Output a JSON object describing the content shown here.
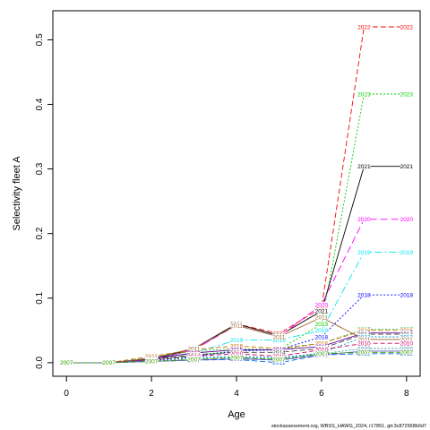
{
  "chart_data": {
    "type": "line",
    "title": "",
    "xlabel": "Age",
    "ylabel": "Selectivity fleet A",
    "xlim": [
      -0.32,
      8.32
    ],
    "ylim": [
      -0.021,
      0.545
    ],
    "x": [
      0,
      1,
      2,
      3,
      4,
      5,
      6,
      7,
      8
    ],
    "xticks": [
      0,
      2,
      4,
      6,
      8
    ],
    "yticks": [
      0.0,
      0.1,
      0.2,
      0.3,
      0.4,
      0.5
    ],
    "ytick_labels": [
      "0.0",
      "0.1",
      "0.2",
      "0.3",
      "0.4",
      "0.5"
    ],
    "grid": false,
    "legend": "none",
    "series": [
      {
        "name": "2022",
        "color": "#ff0000",
        "dash": "6,3",
        "values": [
          0.0,
          0.0,
          0.005,
          0.02,
          0.06,
          0.045,
          0.085,
          0.52,
          0.52
        ]
      },
      {
        "name": "2023",
        "color": "#00cc00",
        "dash": "2,2",
        "values": [
          0.0,
          0.0,
          0.004,
          0.012,
          0.018,
          0.02,
          0.06,
          0.416,
          0.416
        ]
      },
      {
        "name": "2021",
        "color": "#000000",
        "dash": "",
        "values": [
          0.0,
          0.0,
          0.005,
          0.022,
          0.06,
          0.042,
          0.08,
          0.304,
          0.304
        ]
      },
      {
        "name": "2020",
        "color": "#ff00ff",
        "dash": "8,4",
        "values": [
          0.0,
          0.0,
          0.004,
          0.02,
          0.058,
          0.04,
          0.09,
          0.222,
          0.222
        ]
      },
      {
        "name": "2019",
        "color": "#00e5ee",
        "dash": "8,3,2,3",
        "values": [
          0.0,
          0.0,
          0.005,
          0.015,
          0.035,
          0.035,
          0.05,
          0.171,
          0.171
        ]
      },
      {
        "name": "2018",
        "color": "#0000ff",
        "dash": "2,2",
        "values": [
          0.0,
          0.0,
          0.003,
          0.01,
          0.018,
          0.02,
          0.04,
          0.105,
          0.105
        ]
      },
      {
        "name": "2017",
        "color": "#33cc33",
        "dash": "2,2",
        "values": [
          0.0,
          0.0,
          0.008,
          0.018,
          0.022,
          0.02,
          0.03,
          0.052,
          0.052
        ]
      },
      {
        "name": "2016",
        "color": "#cc6600",
        "dash": "5,3",
        "values": [
          0.0,
          0.0,
          0.01,
          0.02,
          0.026,
          0.022,
          0.03,
          0.05,
          0.05
        ]
      },
      {
        "name": "2015",
        "color": "#660099",
        "dash": "",
        "values": [
          0.0,
          0.0,
          0.006,
          0.015,
          0.02,
          0.02,
          0.025,
          0.046,
          0.046
        ]
      },
      {
        "name": "2014",
        "color": "#444444",
        "dash": "6,3",
        "values": [
          0.0,
          0.0,
          0.005,
          0.012,
          0.016,
          0.016,
          0.022,
          0.044,
          0.044
        ]
      },
      {
        "name": "2013",
        "color": "#0099cc",
        "dash": "2,2",
        "values": [
          0.0,
          0.0,
          0.004,
          0.008,
          0.01,
          0.008,
          0.015,
          0.04,
          0.04
        ]
      },
      {
        "name": "2012",
        "color": "#0066ff",
        "dash": "6,3",
        "values": [
          0.0,
          0.0,
          0.002,
          0.004,
          0.005,
          0.0,
          0.012,
          0.014,
          0.014
        ]
      },
      {
        "name": "2011",
        "color": "#996633",
        "dash": "",
        "values": [
          0.0,
          0.0,
          0.007,
          0.022,
          0.058,
          0.04,
          0.07,
          0.036,
          0.036
        ]
      },
      {
        "name": "2010",
        "color": "#cc0066",
        "dash": "5,3",
        "values": [
          0.0,
          0.0,
          0.004,
          0.01,
          0.014,
          0.01,
          0.02,
          0.03,
          0.03
        ]
      },
      {
        "name": "2009",
        "color": "#339999",
        "dash": "2,2",
        "values": [
          0.0,
          0.0,
          0.003,
          0.006,
          0.008,
          0.006,
          0.014,
          0.022,
          0.022
        ]
      },
      {
        "name": "2008",
        "color": "#6666cc",
        "dash": "",
        "values": [
          0.0,
          0.0,
          0.002,
          0.004,
          0.006,
          0.004,
          0.012,
          0.018,
          0.018
        ]
      },
      {
        "name": "2007",
        "color": "#339900",
        "dash": "6,3",
        "values": [
          0.0,
          0.0,
          0.002,
          0.005,
          0.008,
          0.005,
          0.014,
          0.016,
          0.016
        ]
      }
    ],
    "annotations": {
      "watermark": "stockassessment.org, WBSS_HAWG_2024, r17851, git:3c872568b0d7"
    }
  }
}
